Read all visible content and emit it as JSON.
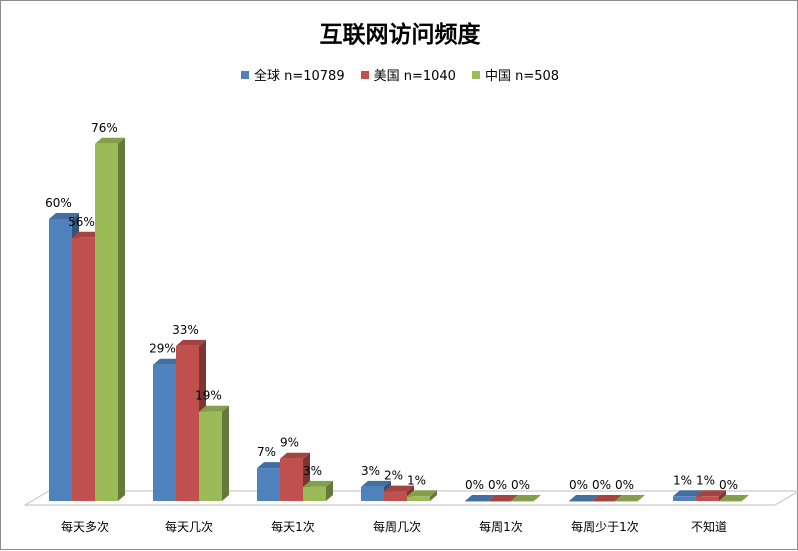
{
  "chart_data": {
    "type": "bar",
    "title": "互联网访问频度",
    "categories": [
      "每天多次",
      "每天几次",
      "每天1次",
      "每周几次",
      "每周1次",
      "每周少于1次",
      "不知道"
    ],
    "series": [
      {
        "name": "全球 n=10789",
        "values": [
          60,
          29,
          7,
          3,
          0,
          0,
          1
        ],
        "color": "#4f81bd"
      },
      {
        "name": "美国 n=1040",
        "values": [
          56,
          33,
          9,
          2,
          0,
          0,
          1
        ],
        "color": "#c0504d"
      },
      {
        "name": "中国 n=508",
        "values": [
          76,
          19,
          3,
          1,
          0,
          0,
          0
        ],
        "color": "#9bbb59"
      }
    ],
    "value_suffix": "%",
    "ylim": [
      0,
      80
    ],
    "legend": "top",
    "grid": false,
    "style": "3d-clustered-column"
  }
}
